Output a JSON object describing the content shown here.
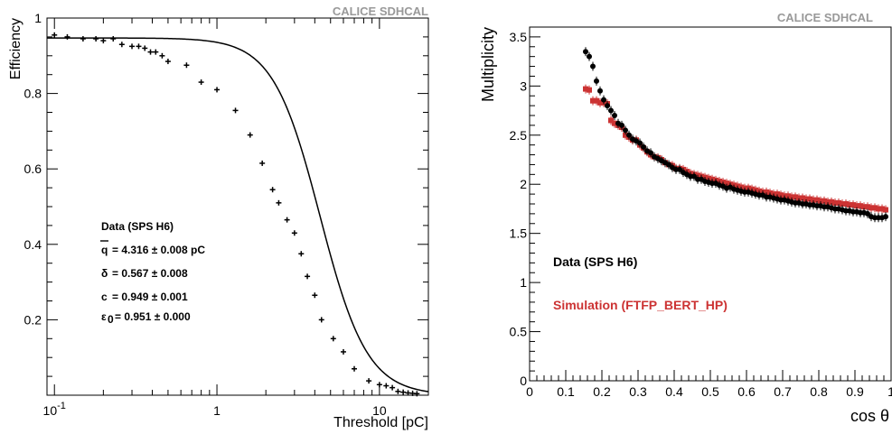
{
  "chart_data": [
    {
      "type": "scatter",
      "collaboration_label": "CALICE SDHCAL",
      "xlabel": "Threshold [pC]",
      "ylabel": "Efficiency",
      "x_scale": "log",
      "xlim": [
        0.09,
        20
      ],
      "ylim": [
        0,
        1.0
      ],
      "x_tick_labels": [
        {
          "value": 0.1,
          "base": "10",
          "exp": "-1"
        },
        {
          "value": 1,
          "base": "1",
          "exp": ""
        },
        {
          "value": 10,
          "base": "10",
          "exp": ""
        }
      ],
      "y_ticks": [
        0.2,
        0.4,
        0.6,
        0.8,
        1.0
      ],
      "y_tick_labels": [
        "0.2",
        "0.4",
        "0.6",
        "0.8",
        "1"
      ],
      "series": [
        {
          "kind": "points",
          "color": "#000000",
          "x": [
            0.1,
            0.12,
            0.15,
            0.18,
            0.2,
            0.23,
            0.26,
            0.3,
            0.33,
            0.36,
            0.39,
            0.42,
            0.46,
            0.5,
            0.65,
            0.8,
            1.0,
            1.3,
            1.6,
            1.9,
            2.2,
            2.4,
            2.7,
            3.0,
            3.3,
            3.6,
            4.0,
            4.4,
            5.2,
            6.0,
            7.0,
            8.6,
            10.0,
            11.0,
            12.0,
            13.0,
            14.0,
            15.0,
            16.0,
            17.0
          ],
          "y": [
            0.955,
            0.95,
            0.945,
            0.945,
            0.94,
            0.945,
            0.93,
            0.925,
            0.925,
            0.92,
            0.91,
            0.91,
            0.9,
            0.885,
            0.875,
            0.83,
            0.81,
            0.755,
            0.69,
            0.615,
            0.545,
            0.51,
            0.465,
            0.43,
            0.375,
            0.315,
            0.265,
            0.2,
            0.15,
            0.115,
            0.07,
            0.038,
            0.028,
            0.025,
            0.02,
            0.01,
            0.008,
            0.006,
            0.005,
            0.004
          ]
        },
        {
          "kind": "fit",
          "color": "#000000",
          "q": 4.316,
          "delta": 0.567,
          "c": 0.949,
          "epsilon0": 0.951
        }
      ],
      "legend": {
        "title": "Data (SPS H6)",
        "lines": [
          {
            "sym": "q",
            "val": "= 4.316 ± 0.008 pC"
          },
          {
            "sym": "δ",
            "val": "= 0.567 ± 0.008"
          },
          {
            "sym": "c",
            "val": "= 0.949 ± 0.001"
          },
          {
            "sym": "ε",
            "sub": "0",
            "val": "= 0.951 ± 0.000"
          }
        ]
      }
    },
    {
      "type": "scatter",
      "collaboration_label": "CALICE SDHCAL",
      "xlabel": "cos θ",
      "ylabel": "Multiplicity",
      "xlim": [
        0,
        1
      ],
      "ylim": [
        0,
        3.6
      ],
      "x_ticks": [
        0,
        0.1,
        0.2,
        0.3,
        0.4,
        0.5,
        0.6,
        0.7,
        0.8,
        0.9,
        1
      ],
      "x_tick_labels": [
        "0",
        "0.1",
        "0.2",
        "0.3",
        "0.4",
        "0.5",
        "0.6",
        "0.7",
        "0.8",
        "0.9",
        "1"
      ],
      "y_ticks": [
        0,
        0.5,
        1,
        1.5,
        2,
        2.5,
        3,
        3.5
      ],
      "y_tick_labels": [
        "0",
        "0.5",
        "1",
        "1.5",
        "2",
        "2.5",
        "3",
        "3.5"
      ],
      "series": [
        {
          "name": "Data (SPS H6)",
          "color": "#000000",
          "x": [
            0.155,
            0.165,
            0.175,
            0.185,
            0.195,
            0.205,
            0.215,
            0.225,
            0.235,
            0.245,
            0.255,
            0.265,
            0.275,
            0.285,
            0.295,
            0.305,
            0.315,
            0.325,
            0.335,
            0.345,
            0.355,
            0.365,
            0.375,
            0.385,
            0.395,
            0.405,
            0.415,
            0.425,
            0.435,
            0.445,
            0.455,
            0.465,
            0.475,
            0.485,
            0.495,
            0.505,
            0.515,
            0.525,
            0.535,
            0.545,
            0.555,
            0.565,
            0.575,
            0.585,
            0.595,
            0.605,
            0.615,
            0.625,
            0.635,
            0.645,
            0.655,
            0.665,
            0.675,
            0.685,
            0.695,
            0.705,
            0.715,
            0.725,
            0.735,
            0.745,
            0.755,
            0.765,
            0.775,
            0.785,
            0.795,
            0.805,
            0.815,
            0.825,
            0.835,
            0.845,
            0.855,
            0.865,
            0.875,
            0.885,
            0.895,
            0.905,
            0.915,
            0.925,
            0.935,
            0.945,
            0.955,
            0.965,
            0.975,
            0.985
          ],
          "y": [
            3.35,
            3.3,
            3.2,
            3.05,
            2.95,
            2.86,
            2.8,
            2.75,
            2.7,
            2.62,
            2.6,
            2.55,
            2.5,
            2.46,
            2.44,
            2.42,
            2.38,
            2.34,
            2.32,
            2.28,
            2.26,
            2.24,
            2.22,
            2.2,
            2.17,
            2.15,
            2.15,
            2.12,
            2.1,
            2.08,
            2.08,
            2.05,
            2.05,
            2.03,
            2.02,
            2.01,
            2.01,
            1.99,
            1.98,
            1.96,
            1.97,
            1.95,
            1.94,
            1.93,
            1.92,
            1.92,
            1.91,
            1.9,
            1.89,
            1.89,
            1.87,
            1.87,
            1.86,
            1.85,
            1.84,
            1.84,
            1.83,
            1.82,
            1.81,
            1.81,
            1.8,
            1.8,
            1.79,
            1.79,
            1.78,
            1.78,
            1.77,
            1.77,
            1.76,
            1.75,
            1.75,
            1.74,
            1.73,
            1.73,
            1.72,
            1.72,
            1.71,
            1.71,
            1.7,
            1.67,
            1.66,
            1.66,
            1.66,
            1.67
          ]
        },
        {
          "name": "Simulation (FTFP_BERT_HP)",
          "color": "#cc3333",
          "x": [
            0.155,
            0.165,
            0.175,
            0.185,
            0.195,
            0.205,
            0.215,
            0.225,
            0.235,
            0.245,
            0.255,
            0.265,
            0.275,
            0.285,
            0.295,
            0.305,
            0.315,
            0.325,
            0.335,
            0.345,
            0.355,
            0.365,
            0.375,
            0.385,
            0.395,
            0.405,
            0.415,
            0.425,
            0.435,
            0.445,
            0.455,
            0.465,
            0.475,
            0.485,
            0.495,
            0.505,
            0.515,
            0.525,
            0.535,
            0.545,
            0.555,
            0.565,
            0.575,
            0.585,
            0.595,
            0.605,
            0.615,
            0.625,
            0.635,
            0.645,
            0.655,
            0.665,
            0.675,
            0.685,
            0.695,
            0.705,
            0.715,
            0.725,
            0.735,
            0.745,
            0.755,
            0.765,
            0.775,
            0.785,
            0.795,
            0.805,
            0.815,
            0.825,
            0.835,
            0.845,
            0.855,
            0.865,
            0.875,
            0.885,
            0.895,
            0.905,
            0.915,
            0.925,
            0.935,
            0.945,
            0.955,
            0.965,
            0.975,
            0.985
          ],
          "y": [
            2.97,
            2.96,
            2.85,
            2.85,
            2.83,
            2.83,
            2.82,
            2.65,
            2.62,
            2.6,
            2.58,
            2.5,
            2.48,
            2.45,
            2.45,
            2.4,
            2.37,
            2.33,
            2.3,
            2.28,
            2.27,
            2.25,
            2.22,
            2.2,
            2.19,
            2.16,
            2.16,
            2.15,
            2.13,
            2.11,
            2.1,
            2.09,
            2.08,
            2.07,
            2.06,
            2.05,
            2.04,
            2.03,
            2.02,
            2.01,
            2.0,
            1.99,
            1.98,
            1.97,
            1.96,
            1.96,
            1.95,
            1.94,
            1.93,
            1.92,
            1.92,
            1.91,
            1.9,
            1.9,
            1.89,
            1.88,
            1.88,
            1.87,
            1.87,
            1.86,
            1.86,
            1.85,
            1.85,
            1.84,
            1.84,
            1.83,
            1.83,
            1.82,
            1.82,
            1.81,
            1.81,
            1.8,
            1.8,
            1.79,
            1.79,
            1.78,
            1.78,
            1.77,
            1.77,
            1.76,
            1.76,
            1.75,
            1.75,
            1.74
          ]
        }
      ]
    }
  ]
}
